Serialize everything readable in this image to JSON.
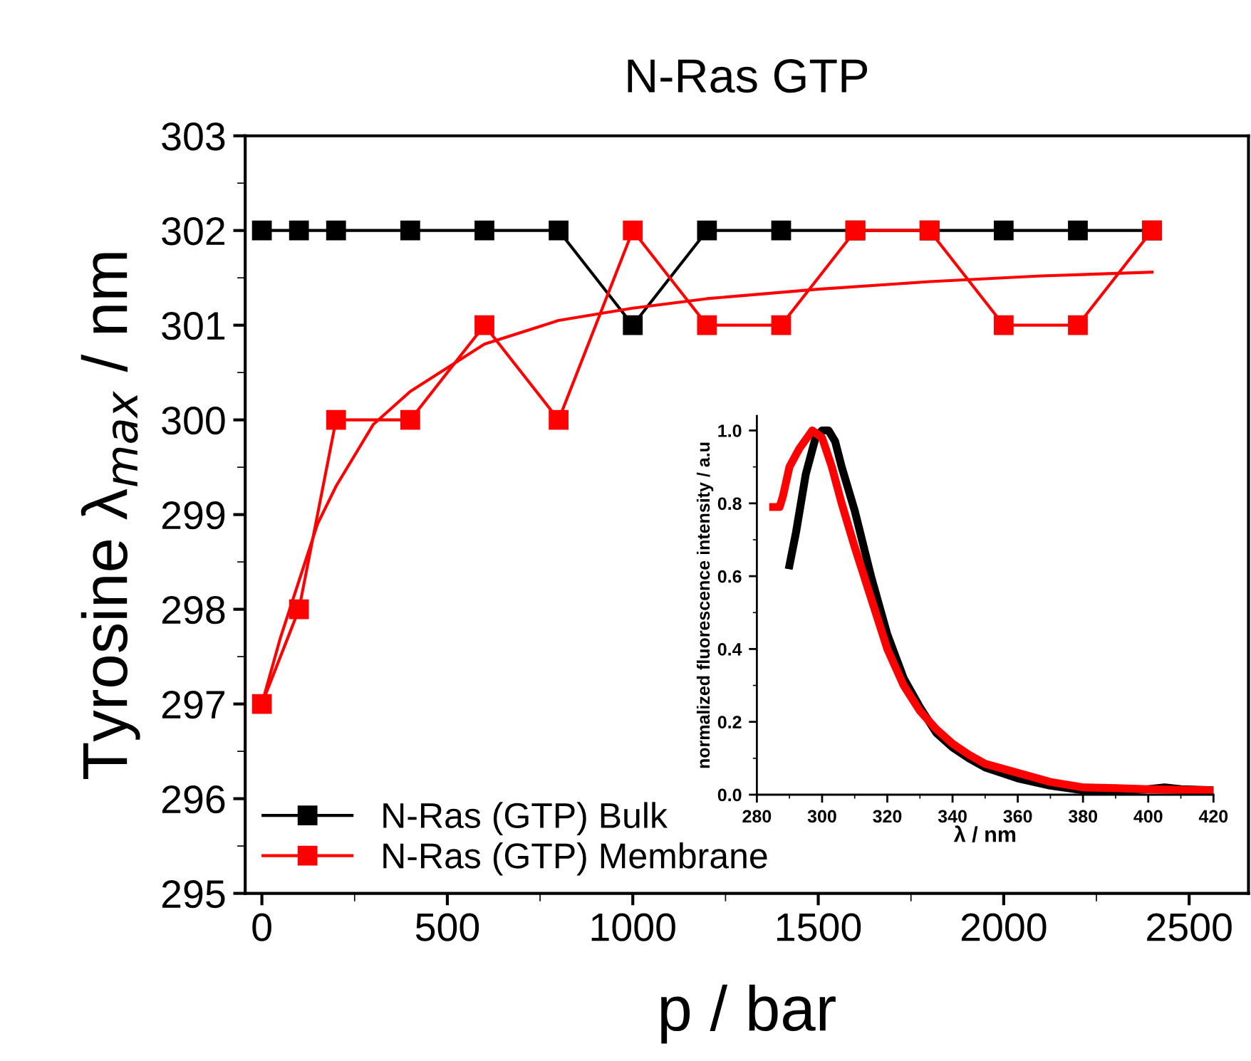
{
  "chart_data": [
    {
      "type": "line",
      "title": "N-Ras GTP",
      "xlabel": "p / bar",
      "ylabel": "Tyrosine λ$_{max}$ / nm",
      "xlim": [
        -45,
        2660
      ],
      "xticks": [
        0,
        500,
        1000,
        1500,
        2000,
        2500
      ],
      "ylim": [
        295,
        303
      ],
      "yticks": [
        295,
        296,
        297,
        298,
        299,
        300,
        301,
        302,
        303
      ],
      "grid": false,
      "legend": "bottom left",
      "marker": "square",
      "line_style": "solid",
      "series": [
        {
          "name": "N-Ras (GTP) Bulk",
          "color": "#000000",
          "x": [
            0,
            100,
            200,
            400,
            600,
            800,
            1000,
            1200,
            1400,
            1600,
            1800,
            2000,
            2200,
            2400
          ],
          "values": [
            302,
            302,
            302,
            302,
            302,
            302,
            301,
            302,
            302,
            302,
            302,
            302,
            302,
            302
          ]
        },
        {
          "name": "N-Ras (GTP) Membrane",
          "color": "#ff0000",
          "x": [
            0,
            100,
            200,
            400,
            600,
            800,
            1000,
            1200,
            1400,
            1600,
            1800,
            2000,
            2200,
            2400
          ],
          "values": [
            297,
            298,
            300,
            300,
            301,
            300,
            302,
            301,
            301,
            302,
            302,
            301,
            301,
            302
          ]
        },
        {
          "color": "#ff0000",
          "marker": "none",
          "x": [
            0,
            50,
            100,
            150,
            200,
            300,
            400,
            600,
            800,
            1000,
            1200,
            1500,
            1800,
            2100,
            2400
          ],
          "values": [
            297.0,
            297.7,
            298.3,
            298.9,
            299.3,
            299.95,
            300.3,
            300.8,
            301.05,
            301.18,
            301.28,
            301.38,
            301.46,
            301.52,
            301.56
          ]
        }
      ]
    },
    {
      "type": "line",
      "xlabel": "λ / nm",
      "ylabel": "normalized fluorescence intensity / a.u",
      "xlim": [
        280,
        420
      ],
      "xticks": [
        280,
        300,
        320,
        340,
        360,
        380,
        400,
        420
      ],
      "ylim": [
        0,
        1.04
      ],
      "yticks": [
        {
          "value": 0,
          "label": "0.0"
        },
        {
          "value": 0.2,
          "label": "0.2"
        },
        {
          "value": 0.4,
          "label": "0.4"
        },
        {
          "value": 0.6,
          "label": "0.6"
        },
        {
          "value": 0.8,
          "label": "0.8"
        },
        {
          "value": 1.0,
          "label": "1.0"
        }
      ],
      "grid": false,
      "marker": "none",
      "line_style": "solid",
      "series": [
        {
          "color": "#000000",
          "x": [
            290,
            292,
            295,
            298,
            300,
            302,
            304,
            306,
            310,
            315,
            320,
            325,
            330,
            335,
            340,
            345,
            350,
            360,
            370,
            380,
            390,
            400,
            405,
            410,
            420
          ],
          "values": [
            0.63,
            0.72,
            0.88,
            0.98,
            1.0,
            1.0,
            0.97,
            0.9,
            0.78,
            0.6,
            0.44,
            0.32,
            0.24,
            0.17,
            0.13,
            0.1,
            0.075,
            0.045,
            0.025,
            0.012,
            0.01,
            0.015,
            0.02,
            0.015,
            0.012
          ]
        },
        {
          "color": "#ff0000",
          "x": [
            285,
            287,
            288,
            290,
            293,
            297,
            300,
            303,
            306,
            310,
            315,
            320,
            325,
            330,
            335,
            340,
            345,
            350,
            360,
            370,
            380,
            390,
            400,
            410,
            420
          ],
          "values": [
            0.79,
            0.79,
            0.82,
            0.9,
            0.95,
            1.0,
            0.98,
            0.9,
            0.8,
            0.68,
            0.54,
            0.4,
            0.3,
            0.23,
            0.18,
            0.14,
            0.11,
            0.085,
            0.06,
            0.035,
            0.02,
            0.018,
            0.015,
            0.013,
            0.012
          ]
        }
      ]
    }
  ]
}
